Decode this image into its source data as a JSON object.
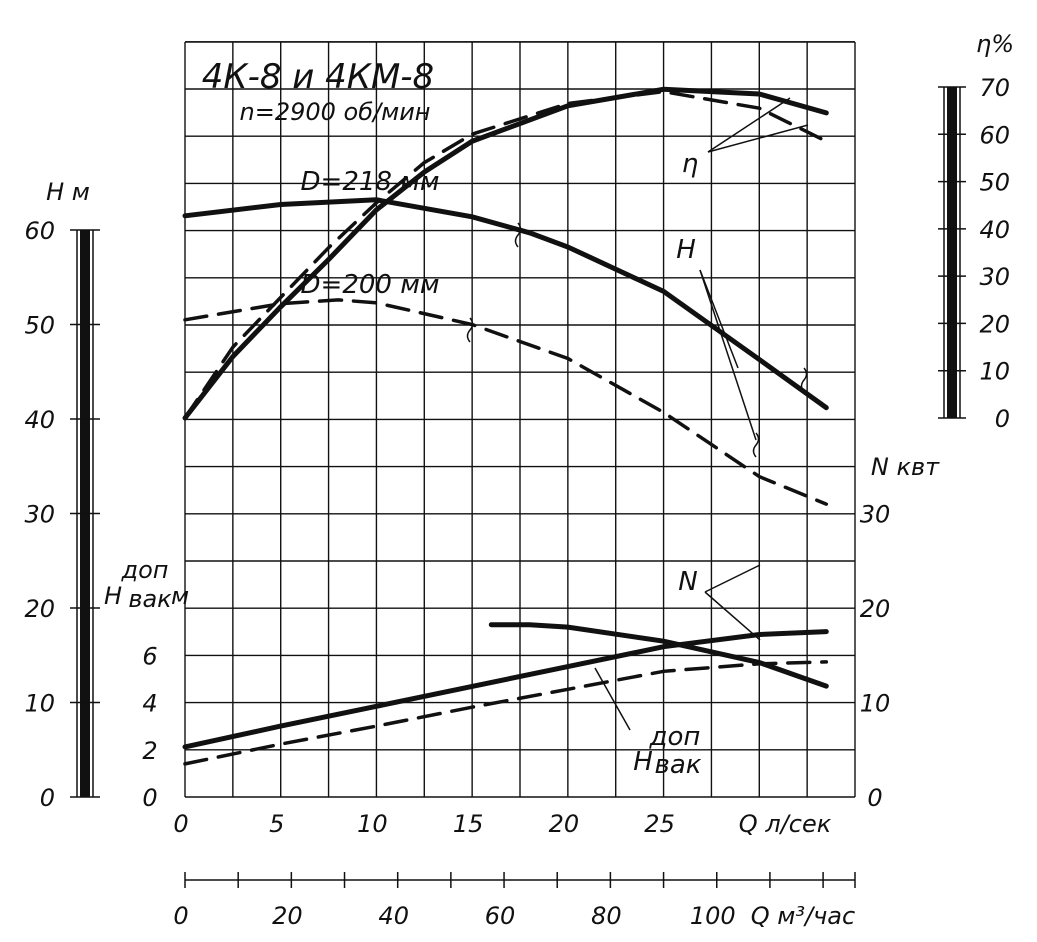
{
  "chart_data": {
    "type": "line",
    "title": "4К-8 и 4КМ-8",
    "subtitle": "n=2900 об/мин",
    "x_axis": {
      "label": "Q л/сек",
      "range": [
        0,
        35
      ],
      "ticks": [
        0,
        5,
        10,
        15,
        20,
        25
      ],
      "tick_labels": [
        "0",
        "5",
        "10",
        "15",
        "20",
        "25"
      ]
    },
    "x_axis_secondary": {
      "label": "Q м³/час",
      "range": [
        0,
        126
      ],
      "ticks": [
        0,
        20,
        40,
        60,
        80,
        100
      ],
      "tick_labels": [
        "0",
        "20",
        "40",
        "60",
        "80",
        "100"
      ]
    },
    "y_left": {
      "label": "H м",
      "range": [
        0,
        60
      ],
      "ticks": [
        0,
        10,
        20,
        30,
        40,
        50,
        60
      ],
      "tick_labels": [
        "0",
        "10",
        "20",
        "30",
        "40",
        "50",
        "60"
      ]
    },
    "y_left_secondary": {
      "label_main": "H",
      "label_sub": "вак",
      "label_sup": "доп",
      "label_unit": "м",
      "range": [
        0,
        8
      ],
      "ticks": [
        0,
        2,
        4,
        6
      ],
      "tick_labels": [
        "0",
        "2",
        "4",
        "6"
      ]
    },
    "y_right_power": {
      "label": "N квт",
      "range": [
        0,
        40
      ],
      "ticks": [
        0,
        10,
        20,
        30
      ],
      "tick_labels": [
        "0",
        "10",
        "20",
        "30"
      ]
    },
    "y_right_eff": {
      "label": "η%",
      "range": [
        0,
        70
      ],
      "ticks": [
        0,
        10,
        20,
        30,
        40,
        50,
        60,
        70
      ],
      "tick_labels": [
        "0",
        "10",
        "20",
        "30",
        "40",
        "50",
        "60",
        "70"
      ]
    },
    "curve_labels": {
      "eta": "η",
      "head": "H",
      "power": "N",
      "d1": "D=218 мм",
      "d2": "D=200 мм",
      "hvak_main": "H",
      "hvak_sub": "вак",
      "hvak_sup": "доп"
    },
    "series": [
      {
        "id": "head_218",
        "axis": "y_left",
        "style": "solid",
        "x": [
          0,
          5,
          10,
          15,
          18,
          20,
          25,
          30,
          33.5
        ],
        "y": [
          61.5,
          62.7,
          63.2,
          61.4,
          59.7,
          58.2,
          53.5,
          46.3,
          41.2
        ]
      },
      {
        "id": "head_200",
        "axis": "y_left",
        "style": "dashed",
        "x": [
          0,
          5,
          8,
          10,
          15,
          20,
          25,
          30,
          33.5
        ],
        "y": [
          50.5,
          52.2,
          52.6,
          52.3,
          50.0,
          46.4,
          40.7,
          33.9,
          31.0
        ]
      },
      {
        "id": "eta_218",
        "axis": "y_eff",
        "style": "solid",
        "x": [
          0,
          2.5,
          5,
          7.5,
          10,
          12.5,
          15,
          20,
          25,
          30,
          33.5
        ],
        "y": [
          0,
          13,
          23.5,
          33.5,
          44,
          52,
          58.5,
          66,
          69.5,
          68.5,
          64.5
        ]
      },
      {
        "id": "eta_200",
        "axis": "y_eff",
        "style": "dashed",
        "x": [
          0,
          2.5,
          5,
          7.5,
          10,
          12.5,
          15,
          20,
          25,
          30,
          33.5
        ],
        "y": [
          0,
          15,
          25.5,
          36,
          45.5,
          54,
          60,
          66.5,
          69,
          65.5,
          58.5
        ]
      },
      {
        "id": "power_218",
        "axis": "y_power",
        "style": "solid",
        "x": [
          0,
          5,
          10,
          15,
          20,
          25,
          30,
          33.5
        ],
        "y": [
          5.3,
          7.5,
          9.6,
          11.7,
          13.8,
          15.9,
          17.2,
          17.5
        ]
      },
      {
        "id": "power_200",
        "axis": "y_power",
        "style": "dashed",
        "x": [
          0,
          5,
          10,
          15,
          20,
          25,
          30,
          33.5
        ],
        "y": [
          3.5,
          5.6,
          7.5,
          9.5,
          11.4,
          13.3,
          14.1,
          14.3
        ]
      },
      {
        "id": "hvak",
        "axis": "y_vak",
        "style": "solid",
        "x": [
          16,
          18,
          20,
          25,
          30,
          33.5
        ],
        "y": [
          7.3,
          7.3,
          7.2,
          6.6,
          5.7,
          4.7
        ]
      }
    ],
    "grid": true,
    "legend": "none"
  }
}
